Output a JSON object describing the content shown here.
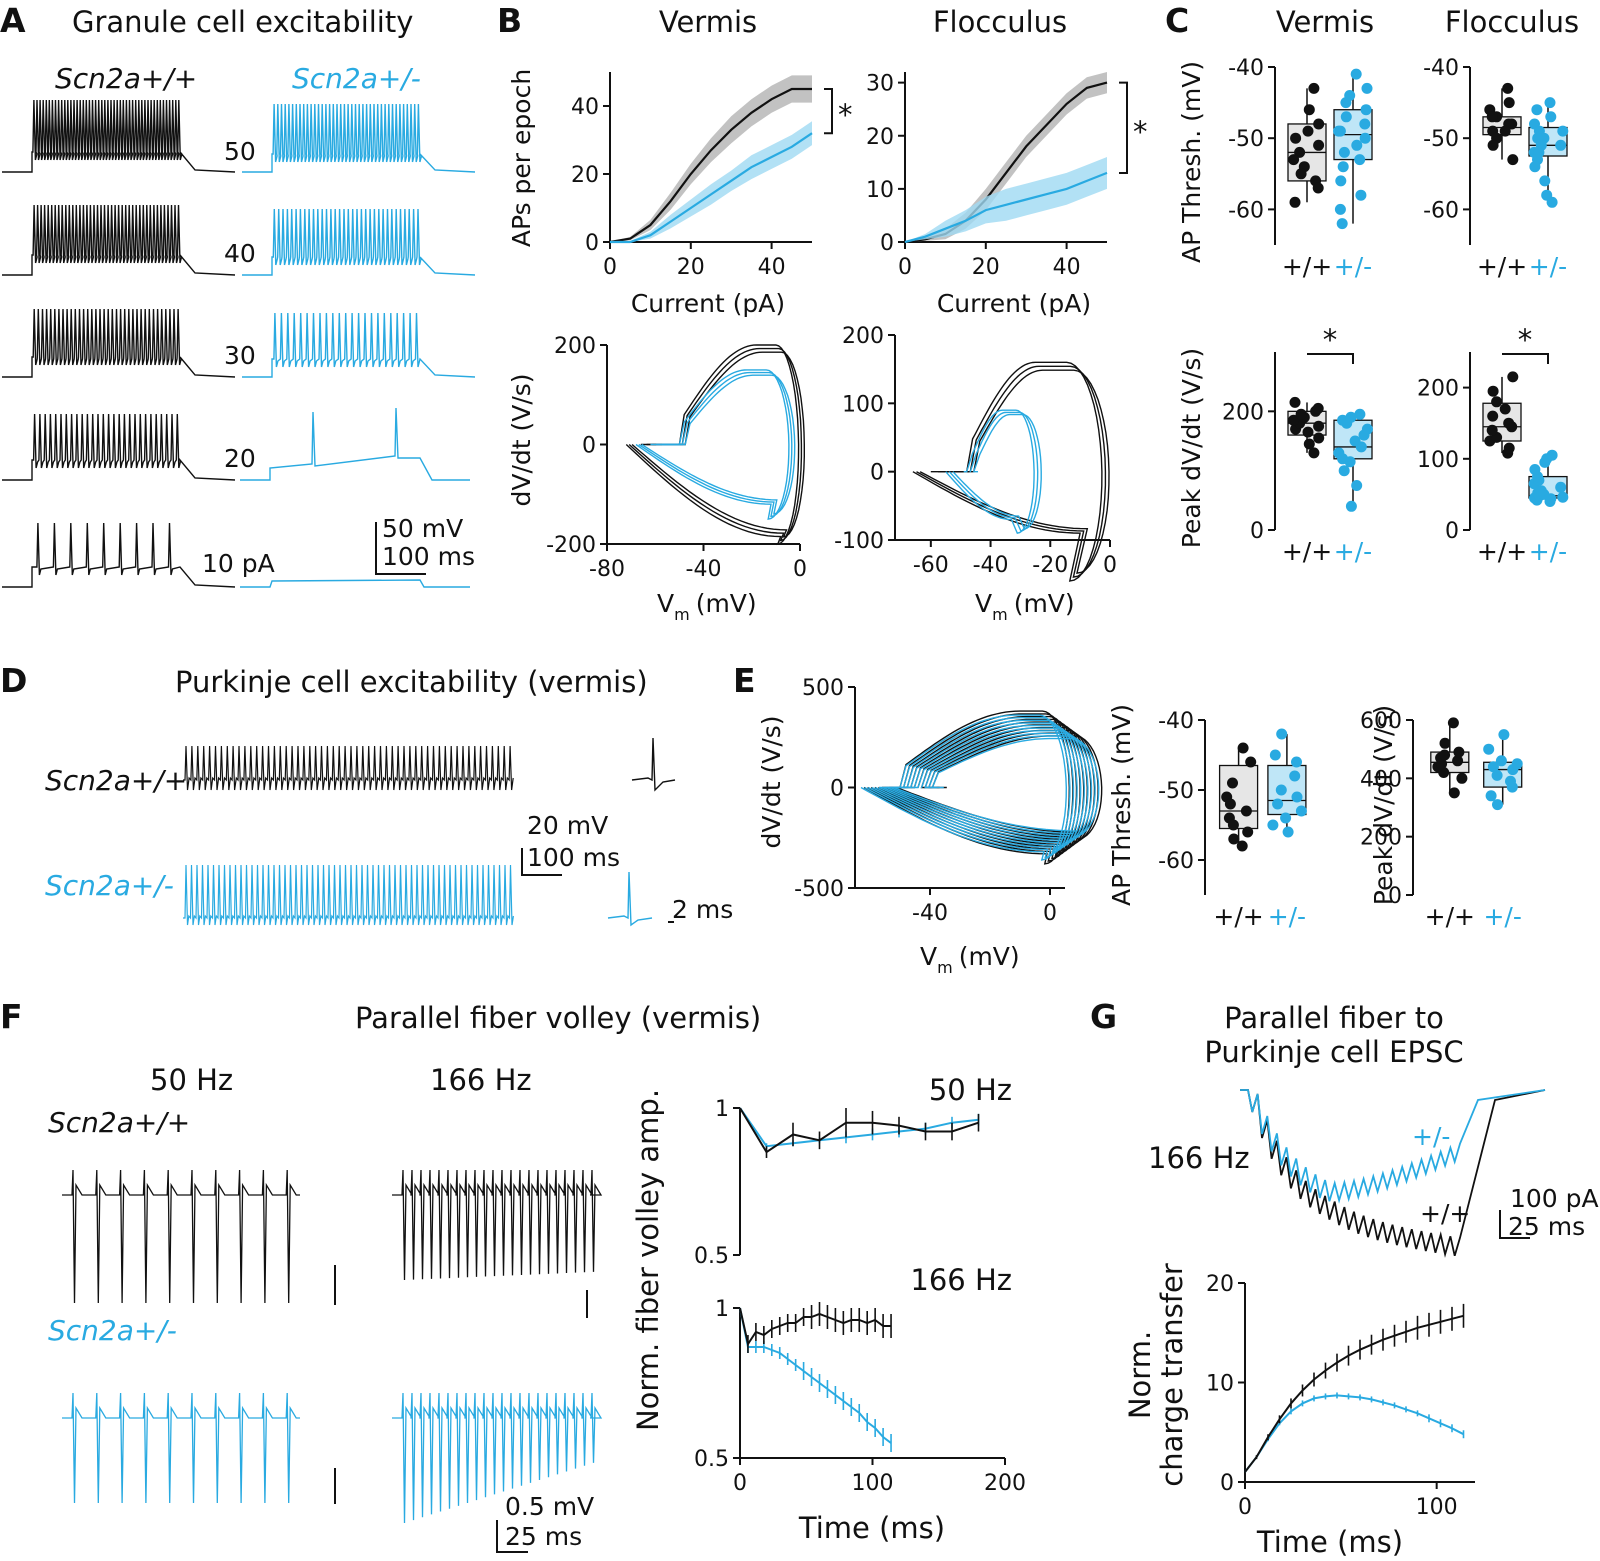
{
  "colors": {
    "wt": "#111111",
    "het": "#29aae1",
    "wt_band": "#b3b3b3",
    "het_band": "#9fd9f2",
    "wt_box": "#e6e6e6",
    "het_box": "#bfe6f7"
  },
  "panels": {
    "A": "A",
    "B": "B",
    "C": "C",
    "D": "D",
    "E": "E",
    "F": "F",
    "G": "G"
  },
  "panelA": {
    "title": "Granule cell excitability",
    "geno_wt": "Scn2a+/+",
    "geno_het": "Scn2a+/-",
    "currents": [
      "50",
      "40",
      "30",
      "20",
      "10 pA"
    ],
    "scale_mv": "50 mV",
    "scale_ms": "100 ms"
  },
  "panelB": {
    "region_left": "Vermis",
    "region_right": "Flocculus",
    "star": "*",
    "fi_ylabel": "APs per epoch",
    "fi_xlabel": "Current (pA)",
    "pp_ylabel": "dV/dt (V/s)",
    "pp_xlabel_main": "V",
    "pp_xlabel_sub": "m",
    "pp_xlabel_unit": "(mV)"
  },
  "panelC": {
    "region_left": "Vermis",
    "region_right": "Flocculus",
    "thresh_ylabel": "AP Thresh. (mV)",
    "peak_ylabel": "Peak dV/dt (V/s)",
    "g_wt": "+/+",
    "g_het": "+/-",
    "star": "*"
  },
  "panelD": {
    "title": "Purkinje cell excitability (vermis)",
    "geno_wt": "Scn2a+/+",
    "geno_het": "Scn2a+/-",
    "scale_mv": "20 mV",
    "scale_ms": "100 ms",
    "scale_ms2": "2 ms"
  },
  "panelE": {
    "pp_ylabel": "dV/dt (V/s)",
    "thresh_ylabel": "AP Thresh. (mV)",
    "peak_ylabel": "Peak dV/dt (V/s)",
    "g_wt": "+/+",
    "g_het": "+/-"
  },
  "panelF": {
    "title": "Parallel fiber volley (vermis)",
    "freq1": "50 Hz",
    "freq2": "166 Hz",
    "geno_wt": "Scn2a+/+",
    "geno_het": "Scn2a+/-",
    "scale_mv": "0.5 mV",
    "scale_ms": "25 ms",
    "ylabel": "Norm. fiber volley amp.",
    "xlabel": "Time (ms)"
  },
  "panelG": {
    "title_line1": "Parallel fiber to",
    "title_line2": "Purkinje cell EPSC",
    "freq": "166 Hz",
    "g_wt": "+/+",
    "g_het": "+/-",
    "scale_pa": "100 pA",
    "scale_ms": "25 ms",
    "ylabel_line1": "Norm.",
    "ylabel_line2": "charge transfer",
    "xlabel": "Time (ms)"
  },
  "chart_data": [
    {
      "id": "B_fi_vermis",
      "type": "area",
      "title": "Vermis",
      "xlabel": "Current (pA)",
      "ylabel": "APs per epoch",
      "xlim": [
        0,
        50
      ],
      "ylim": [
        0,
        50
      ],
      "xticks": [
        0,
        20,
        40
      ],
      "yticks": [
        0,
        20,
        40
      ],
      "x": [
        0,
        5,
        10,
        15,
        20,
        25,
        30,
        35,
        40,
        45,
        50
      ],
      "series": [
        {
          "name": "+/+",
          "values": [
            0,
            1,
            5,
            12,
            20,
            27,
            33,
            38,
            42,
            45,
            45
          ],
          "sem": [
            0,
            0.5,
            1.5,
            2.5,
            3,
            3.5,
            4,
            4,
            4,
            4,
            4
          ]
        },
        {
          "name": "+/-",
          "values": [
            0,
            0,
            2,
            6,
            10,
            14,
            18,
            22,
            25,
            28,
            32
          ],
          "sem": [
            0,
            0.3,
            1,
            2,
            2.5,
            3,
            3,
            3.5,
            3.5,
            3.5,
            3.5
          ]
        }
      ],
      "annotation": "*"
    },
    {
      "id": "B_fi_flocculus",
      "type": "area",
      "title": "Flocculus",
      "xlabel": "Current (pA)",
      "ylabel": "",
      "xlim": [
        0,
        50
      ],
      "ylim": [
        0,
        32
      ],
      "xticks": [
        0,
        20,
        40
      ],
      "yticks": [
        0,
        10,
        20,
        30
      ],
      "x": [
        0,
        5,
        10,
        15,
        20,
        25,
        30,
        35,
        40,
        45,
        50
      ],
      "series": [
        {
          "name": "+/+",
          "values": [
            0,
            0.5,
            1.5,
            4,
            8,
            13,
            18,
            22,
            26,
            29,
            30
          ],
          "sem": [
            0,
            0.3,
            1,
            1.5,
            2,
            2,
            2,
            2,
            2,
            2,
            2
          ]
        },
        {
          "name": "+/-",
          "values": [
            0,
            1,
            2.5,
            4,
            6,
            7,
            8,
            9,
            10,
            11.5,
            13
          ],
          "sem": [
            0,
            0.5,
            1.5,
            2,
            2.5,
            3,
            3,
            3,
            3,
            3,
            3
          ]
        }
      ],
      "annotation": "*"
    },
    {
      "id": "B_phase_vermis",
      "type": "line",
      "xlabel": "Vm (mV)",
      "ylabel": "dV/dt (V/s)",
      "xlim": [
        -80,
        0
      ],
      "ylim": [
        -200,
        200
      ],
      "xticks": [
        -80,
        -40,
        0
      ],
      "yticks": [
        -200,
        0,
        200
      ],
      "series": [
        {
          "name": "+/+",
          "peak_dvdt": 200,
          "min_dvdt": -185,
          "threshold": -50,
          "vm_peak": -2,
          "vm_min": -72,
          "vm_at_peak": -18
        },
        {
          "name": "+/-",
          "peak_dvdt": 150,
          "min_dvdt": -120,
          "threshold": -50,
          "vm_peak": -6,
          "vm_min": -68,
          "vm_at_peak": -22
        }
      ]
    },
    {
      "id": "B_phase_flocculus",
      "type": "line",
      "xlabel": "Vm (mV)",
      "ylabel": "",
      "xlim": [
        -72,
        0
      ],
      "ylim": [
        -100,
        200
      ],
      "xticks": [
        -60,
        -40,
        -20,
        0
      ],
      "yticks": [
        -100,
        0,
        100,
        200
      ],
      "series": [
        {
          "name": "+/+",
          "peak_dvdt": 160,
          "min_dvdt": -90,
          "threshold": -48,
          "vm_peak": -4,
          "vm_min": -66,
          "vm_at_peak": -25
        },
        {
          "name": "+/-",
          "peak_dvdt": 90,
          "min_dvdt": -70,
          "threshold": -48,
          "vm_peak": -27,
          "vm_min": -55,
          "vm_at_peak": -36
        }
      ]
    },
    {
      "id": "C_thresh_vermis",
      "type": "box",
      "ylabel": "AP Thresh. (mV)",
      "ylim": [
        -65,
        -40
      ],
      "yticks": [
        -60,
        -50,
        -40
      ],
      "groups": [
        {
          "name": "+/+",
          "median": -52,
          "q1": -56,
          "q3": -48,
          "min": -59,
          "max": -43,
          "points": [
            -43,
            -46,
            -48,
            -49,
            -50,
            -51,
            -52,
            -53,
            -54,
            -55,
            -56,
            -57,
            -59
          ]
        },
        {
          "name": "+/-",
          "median": -49.5,
          "q1": -53,
          "q3": -46,
          "min": -62,
          "max": -41,
          "points": [
            -41,
            -43,
            -44,
            -45,
            -46,
            -47,
            -48,
            -49,
            -49,
            -50,
            -51,
            -52,
            -53,
            -54,
            -56,
            -58,
            -60,
            -62
          ]
        }
      ]
    },
    {
      "id": "C_thresh_flocculus",
      "type": "box",
      "ylabel": "",
      "ylim": [
        -65,
        -40
      ],
      "yticks": [
        -60,
        -50,
        -40
      ],
      "groups": [
        {
          "name": "+/+",
          "median": -48.5,
          "q1": -49.5,
          "q3": -47,
          "min": -53,
          "max": -43,
          "points": [
            -43,
            -45,
            -46,
            -47,
            -47,
            -48,
            -48,
            -49,
            -49,
            -50,
            -51,
            -53
          ]
        },
        {
          "name": "+/-",
          "median": -51,
          "q1": -52.5,
          "q3": -48.5,
          "min": -59,
          "max": -45,
          "points": [
            -45,
            -46,
            -47,
            -48,
            -49,
            -49,
            -50,
            -50,
            -51,
            -51,
            -52,
            -52,
            -53,
            -54,
            -56,
            -58,
            -59
          ]
        }
      ]
    },
    {
      "id": "C_peak_vermis",
      "type": "box",
      "ylabel": "Peak dV/dt (V/s)",
      "ylim": [
        0,
        300
      ],
      "yticks": [
        0,
        200
      ],
      "groups": [
        {
          "name": "+/+",
          "median": 180,
          "q1": 160,
          "q3": 200,
          "min": 130,
          "max": 215,
          "points": [
            130,
            145,
            155,
            165,
            170,
            175,
            180,
            185,
            190,
            195,
            200,
            205,
            215
          ]
        },
        {
          "name": "+/-",
          "median": 140,
          "q1": 120,
          "q3": 185,
          "min": 40,
          "max": 195,
          "points": [
            40,
            75,
            100,
            115,
            120,
            130,
            140,
            150,
            160,
            170,
            180,
            185,
            190,
            195
          ]
        }
      ],
      "annotation": "*"
    },
    {
      "id": "C_peak_flocculus",
      "type": "box",
      "ylabel": "",
      "ylim": [
        0,
        250
      ],
      "yticks": [
        0,
        100,
        200
      ],
      "groups": [
        {
          "name": "+/+",
          "median": 145,
          "q1": 125,
          "q3": 178,
          "min": 108,
          "max": 215,
          "points": [
            108,
            115,
            125,
            130,
            140,
            145,
            150,
            160,
            170,
            180,
            195,
            215
          ]
        },
        {
          "name": "+/-",
          "median": 48,
          "q1": 45,
          "q3": 75,
          "min": 40,
          "max": 105,
          "points": [
            40,
            42,
            44,
            45,
            46,
            48,
            50,
            52,
            55,
            60,
            65,
            70,
            75,
            85,
            95,
            100,
            105
          ]
        }
      ],
      "annotation": "*"
    },
    {
      "id": "E_phase",
      "type": "line",
      "xlabel": "Vm (mV)",
      "ylabel": "dV/dt (V/s)",
      "xlim": [
        -65,
        5
      ],
      "ylim": [
        -500,
        500
      ],
      "xticks": [
        -40,
        0
      ],
      "yticks": [
        -500,
        0,
        500
      ],
      "series": [
        {
          "name": "+/+",
          "peak_dvdt": 380,
          "min_dvdt": -330,
          "threshold": -50,
          "vm_peak": 5,
          "vm_min": -62
        },
        {
          "name": "+/-",
          "peak_dvdt": 360,
          "min_dvdt": -320,
          "threshold": -50,
          "vm_peak": 4,
          "vm_min": -63
        }
      ]
    },
    {
      "id": "E_thresh",
      "type": "box",
      "ylabel": "AP Thresh. (mV)",
      "ylim": [
        -65,
        -40
      ],
      "yticks": [
        -60,
        -50,
        -40
      ],
      "groups": [
        {
          "name": "+/+",
          "median": -53,
          "q1": -55.5,
          "q3": -46.5,
          "min": -58,
          "max": -44,
          "points": [
            -44,
            -46,
            -49,
            -51,
            -52,
            -53,
            -54,
            -55,
            -56,
            -57,
            -58
          ]
        },
        {
          "name": "+/-",
          "median": -51.5,
          "q1": -53.5,
          "q3": -46.5,
          "min": -56,
          "max": -42,
          "points": [
            -42,
            -45,
            -46,
            -48,
            -50,
            -51,
            -52,
            -53,
            -54,
            -55,
            -56
          ]
        }
      ]
    },
    {
      "id": "E_peak",
      "type": "box",
      "ylabel": "Peak dV/dt (V/s)",
      "ylim": [
        0,
        600
      ],
      "yticks": [
        0,
        200,
        400,
        600
      ],
      "groups": [
        {
          "name": "+/+",
          "median": 455,
          "q1": 420,
          "q3": 490,
          "min": 350,
          "max": 590,
          "points": [
            350,
            400,
            420,
            440,
            450,
            460,
            470,
            480,
            490,
            520,
            590
          ]
        },
        {
          "name": "+/-",
          "median": 430,
          "q1": 370,
          "q3": 455,
          "min": 310,
          "max": 550,
          "points": [
            310,
            340,
            370,
            390,
            410,
            430,
            440,
            450,
            460,
            500,
            550
          ]
        }
      ]
    },
    {
      "id": "F_50Hz",
      "type": "line",
      "title": "50 Hz",
      "ylabel": "Norm. fiber volley amp.",
      "xlim": [
        0,
        200
      ],
      "ylim": [
        0.5,
        1.0
      ],
      "yticks": [
        0.5,
        1.0
      ],
      "x": [
        0,
        20,
        40,
        60,
        80,
        100,
        120,
        140,
        160,
        180
      ],
      "series": [
        {
          "name": "+/+",
          "values": [
            1.0,
            0.85,
            0.91,
            0.89,
            0.95,
            0.95,
            0.94,
            0.92,
            0.92,
            0.95
          ],
          "sem": [
            0,
            0.02,
            0.04,
            0.03,
            0.05,
            0.04,
            0.03,
            0.03,
            0.03,
            0.03
          ]
        },
        {
          "name": "+/-",
          "values": [
            1.0,
            0.87,
            0.88,
            0.89,
            0.9,
            0.91,
            0.92,
            0.93,
            0.95,
            0.96
          ],
          "sem": [
            0,
            0.01,
            0.01,
            0.01,
            0.02,
            0.02,
            0.02,
            0.02,
            0.02,
            0.02
          ]
        }
      ]
    },
    {
      "id": "F_166Hz",
      "type": "line",
      "title": "166 Hz",
      "xlabel": "Time (ms)",
      "xlim": [
        0,
        200
      ],
      "ylim": [
        0.5,
        1.0
      ],
      "xticks": [
        0,
        100,
        200
      ],
      "yticks": [
        0.5,
        1.0
      ],
      "x": [
        0,
        6,
        12,
        18,
        24,
        30,
        36,
        42,
        48,
        54,
        60,
        66,
        72,
        78,
        84,
        90,
        96,
        102,
        108,
        114
      ],
      "series": [
        {
          "name": "+/+",
          "values": [
            1.0,
            0.88,
            0.92,
            0.91,
            0.93,
            0.94,
            0.95,
            0.95,
            0.97,
            0.97,
            0.98,
            0.97,
            0.96,
            0.95,
            0.96,
            0.96,
            0.95,
            0.96,
            0.94,
            0.94
          ],
          "sem": [
            0,
            0.03,
            0.03,
            0.03,
            0.03,
            0.03,
            0.03,
            0.03,
            0.03,
            0.04,
            0.04,
            0.04,
            0.04,
            0.04,
            0.04,
            0.04,
            0.04,
            0.04,
            0.04,
            0.04
          ]
        },
        {
          "name": "+/-",
          "values": [
            1.0,
            0.87,
            0.87,
            0.87,
            0.86,
            0.85,
            0.83,
            0.81,
            0.79,
            0.77,
            0.75,
            0.73,
            0.71,
            0.69,
            0.67,
            0.65,
            0.62,
            0.6,
            0.57,
            0.55
          ],
          "sem": [
            0,
            0.02,
            0.02,
            0.02,
            0.02,
            0.02,
            0.02,
            0.02,
            0.03,
            0.03,
            0.03,
            0.03,
            0.03,
            0.03,
            0.03,
            0.03,
            0.03,
            0.03,
            0.03,
            0.03
          ]
        }
      ]
    },
    {
      "id": "G_charge",
      "type": "line",
      "xlabel": "Time (ms)",
      "ylabel": "Norm. charge transfer",
      "xlim": [
        0,
        120
      ],
      "ylim": [
        0,
        20
      ],
      "xticks": [
        0,
        100
      ],
      "yticks": [
        0,
        10,
        20
      ],
      "x": [
        0,
        6,
        12,
        18,
        24,
        30,
        36,
        42,
        48,
        54,
        60,
        66,
        72,
        78,
        84,
        90,
        96,
        102,
        108,
        114
      ],
      "series": [
        {
          "name": "+/+",
          "values": [
            1,
            2.5,
            4.5,
            6.3,
            7.9,
            9.2,
            10.3,
            11.2,
            12,
            12.7,
            13.3,
            13.8,
            14.3,
            14.7,
            15.1,
            15.5,
            15.8,
            16.1,
            16.4,
            16.7
          ],
          "sem": [
            0,
            0.2,
            0.3,
            0.4,
            0.5,
            0.6,
            0.7,
            0.8,
            0.9,
            1,
            1,
            1,
            1.1,
            1.1,
            1.1,
            1.2,
            1.2,
            1.2,
            1.2,
            1.2
          ]
        },
        {
          "name": "+/-",
          "values": [
            1,
            2.5,
            4.3,
            5.9,
            7.1,
            7.9,
            8.4,
            8.6,
            8.7,
            8.6,
            8.5,
            8.3,
            8,
            7.7,
            7.3,
            6.9,
            6.4,
            5.9,
            5.4,
            4.8
          ],
          "sem": [
            0,
            0.1,
            0.2,
            0.2,
            0.3,
            0.3,
            0.3,
            0.3,
            0.3,
            0.3,
            0.3,
            0.3,
            0.3,
            0.3,
            0.3,
            0.3,
            0.4,
            0.4,
            0.4,
            0.4
          ]
        }
      ]
    }
  ]
}
